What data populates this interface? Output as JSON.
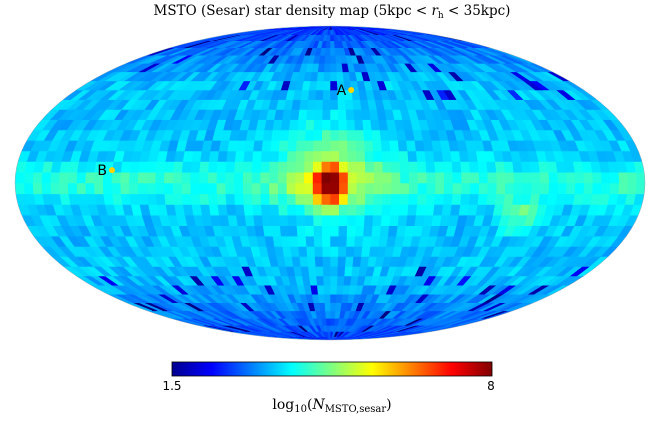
{
  "chart_data": {
    "type": "heatmap",
    "projection": "mollweide all-sky",
    "title": "MSTO (Sesar) star density map (5kpc < r_h < 35kpc)",
    "title_parts": {
      "prefix": "MSTO (Sesar) star density map (5kpc < ",
      "var": "r",
      "var_sub": "h",
      "suffix": " < 35kpc)"
    },
    "colormap": "jet",
    "colorbar": {
      "min": 1.5,
      "max": 8,
      "min_label": "1.5",
      "max_label": "8",
      "label_prefix": "log",
      "label_log_sub": "10",
      "label_open": "(",
      "label_var": "N",
      "label_var_sub": "MSTO,sesar",
      "label_close": ")"
    },
    "background_level": 3.55,
    "features": [
      {
        "name": "central bulge peak",
        "lon": 0,
        "lat": 0,
        "value": 7.9
      },
      {
        "name": "inner plateau",
        "lon": 0,
        "lat": 5,
        "value": 5.0
      },
      {
        "name": "disc band",
        "lon": 0,
        "lat": 0,
        "value": 4.5
      },
      {
        "name": "east overdensity",
        "lon": -110,
        "lat": -15,
        "value": 4.6
      },
      {
        "name": "north depletion",
        "lon": 20,
        "lat": 72,
        "value": 2.4
      },
      {
        "name": "south depletion",
        "lon": 30,
        "lat": -68,
        "value": 2.5
      }
    ],
    "markers": [
      {
        "label": "A",
        "lon": -15,
        "lat": 45,
        "color": "#ffd400"
      },
      {
        "label": "B",
        "lon": 125,
        "lat": 6,
        "color": "#ffd400"
      }
    ]
  }
}
